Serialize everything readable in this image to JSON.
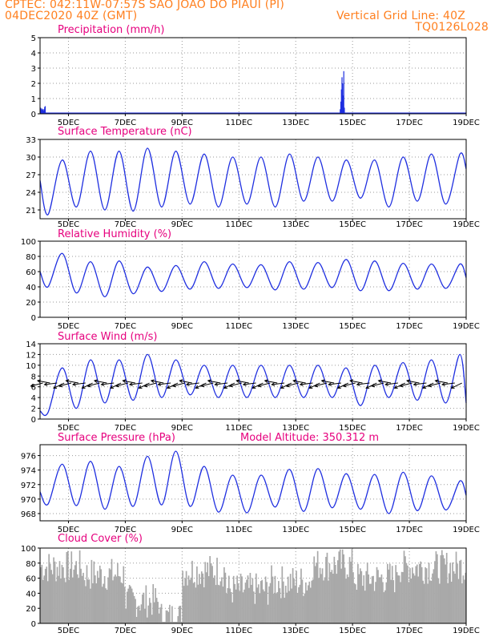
{
  "header": {
    "line1_left": "CPTEC:   042:11W-07:57S   SAO JOAO DO PIAUI (PI)",
    "line2_left": "04DEC2020 40Z (GMT)",
    "line2_right": "Vertical Grid Line: 40Z",
    "line3_right": "TQ0126L028"
  },
  "colors": {
    "header": "#ff7f1e",
    "title": "#e6007e",
    "series": "#1f2fe0",
    "cloud": "#a9a9a9",
    "grid": "#9a9a9a"
  },
  "x_axis": {
    "ticks": [
      "5DEC",
      "7DEC",
      "9DEC",
      "11DEC",
      "13DEC",
      "15DEC",
      "17DEC",
      "19DEC"
    ],
    "tick_days": [
      5,
      7,
      9,
      11,
      13,
      15,
      17,
      19
    ],
    "range_days": [
      4.0,
      19.0
    ]
  },
  "chart_data": [
    {
      "id": "precip",
      "type": "bar",
      "title": "Precipitation (mm/h)",
      "ylim": [
        0,
        5
      ],
      "yticks": [
        "0",
        "1",
        "2",
        "3",
        "4",
        "5"
      ],
      "events": [
        {
          "day": 4.0,
          "values": [
            0.4,
            0.3,
            0.35,
            0.25,
            0.3,
            0.2,
            0.3,
            0.45,
            0.5
          ]
        },
        {
          "day": 14.55,
          "values": [
            0.3,
            0.8,
            1.6,
            2.4,
            2.0,
            1.2,
            2.8,
            0.4
          ]
        }
      ],
      "trace": 0.05
    },
    {
      "id": "temp",
      "type": "line",
      "title": "Surface Temperature (nC)",
      "ylim": [
        19.5,
        33
      ],
      "yticks": [
        "21",
        "24",
        "27",
        "30",
        "33"
      ],
      "ytick_values": [
        21,
        24,
        27,
        30,
        33
      ],
      "daily_max": [
        29.5,
        31,
        31,
        31.5,
        31,
        30.5,
        30,
        30,
        30.5,
        30,
        29.5,
        29.5,
        30,
        30.5,
        30.5
      ],
      "daily_min": [
        20.2,
        21.5,
        21,
        20.8,
        21.5,
        22,
        21.5,
        22,
        21.5,
        22.5,
        22.5,
        23,
        21.5,
        22.5,
        22
      ],
      "start_value": 26,
      "end_value": 28
    },
    {
      "id": "rh",
      "type": "line",
      "title": "Relative Humidity (%)",
      "ylim": [
        0,
        100
      ],
      "yticks": [
        "0",
        "20",
        "40",
        "60",
        "80",
        "100"
      ],
      "ytick_values": [
        0,
        20,
        40,
        60,
        80,
        100
      ],
      "daily_max": [
        84,
        73,
        74,
        66,
        68,
        73,
        70,
        69,
        73,
        72,
        76,
        74,
        71,
        70,
        70
      ],
      "daily_min": [
        40,
        32,
        27,
        31,
        34,
        37,
        38,
        39,
        36,
        37,
        39,
        35,
        35,
        37,
        38
      ],
      "start_value": 60,
      "end_value": 52
    },
    {
      "id": "wind",
      "type": "line",
      "title": "Surface Wind (m/s)",
      "ylim": [
        0,
        14
      ],
      "yticks": [
        "0",
        "2",
        "4",
        "6",
        "8",
        "10",
        "12",
        "14"
      ],
      "ytick_values": [
        0,
        2,
        4,
        6,
        8,
        10,
        12,
        14
      ],
      "daily_max": [
        9.5,
        11,
        11,
        12,
        11,
        10,
        10,
        10,
        10,
        10,
        9.5,
        10,
        10.5,
        11,
        12
      ],
      "daily_min": [
        1.2,
        2,
        3,
        3.5,
        4,
        4.5,
        4,
        4,
        4,
        4,
        4,
        2.5,
        4,
        3.5,
        3
      ],
      "start_value": 1.5,
      "end_value": 3,
      "vector_level": 6.7,
      "vector_spacing_days": 0.25
    },
    {
      "id": "pres",
      "type": "line",
      "title": "Surface Pressure (hPa)",
      "subtitle": "Model Altitude: 350.312 m",
      "ylim": [
        967,
        977.5
      ],
      "yticks": [
        "968",
        "970",
        "972",
        "974",
        "976"
      ],
      "ytick_values": [
        968,
        970,
        972,
        974,
        976
      ],
      "daily_max": [
        974.8,
        975.2,
        974.5,
        975.9,
        976.6,
        974.5,
        973.3,
        973.3,
        974.1,
        974.2,
        973.5,
        973.4,
        973.7,
        973.2,
        972.5
      ],
      "daily_min": [
        969.3,
        969.1,
        968.6,
        969,
        969.2,
        969,
        968.2,
        968.1,
        968.9,
        968.3,
        968.8,
        968.6,
        968,
        968.4,
        968.5
      ],
      "start_value": 971,
      "end_value": 970.5
    },
    {
      "id": "cloud",
      "type": "bar",
      "title": "Cloud Cover (%)",
      "ylim": [
        0,
        100
      ],
      "yticks": [
        "0",
        "20",
        "40",
        "60",
        "80",
        "100"
      ],
      "ytick_values": [
        0,
        20,
        40,
        60,
        80,
        100
      ],
      "segments": [
        {
          "from": 4.0,
          "to": 5.5,
          "level": 75
        },
        {
          "from": 5.5,
          "to": 7.0,
          "level": 65
        },
        {
          "from": 7.0,
          "to": 8.2,
          "level": 30
        },
        {
          "from": 8.2,
          "to": 9.0,
          "level": 8
        },
        {
          "from": 9.0,
          "to": 10.5,
          "level": 70
        },
        {
          "from": 10.5,
          "to": 12.0,
          "level": 45
        },
        {
          "from": 12.0,
          "to": 13.5,
          "level": 55
        },
        {
          "from": 13.5,
          "to": 15.0,
          "level": 78
        },
        {
          "from": 15.0,
          "to": 16.5,
          "level": 60
        },
        {
          "from": 16.5,
          "to": 19.0,
          "level": 75
        }
      ]
    }
  ]
}
